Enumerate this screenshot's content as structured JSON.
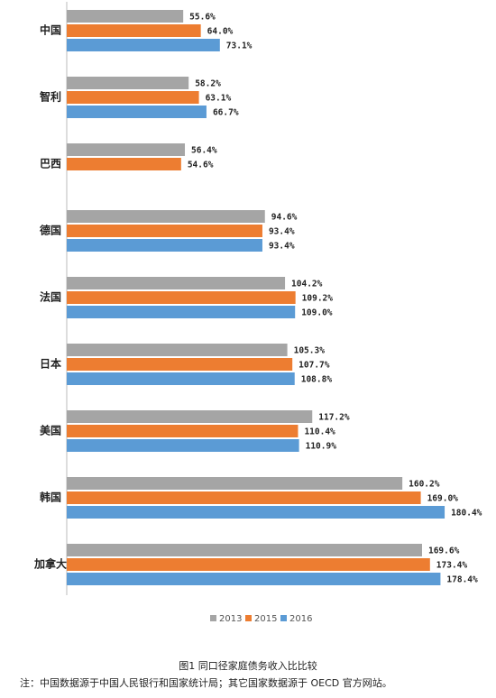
{
  "chart_data": {
    "type": "bar",
    "orientation": "horizontal",
    "categories": [
      "中国",
      "智利",
      "巴西",
      "德国",
      "法国",
      "日本",
      "美国",
      "韩国",
      "加拿大"
    ],
    "series": [
      {
        "name": "2013",
        "color": "#a5a5a5",
        "values": [
          55.6,
          58.2,
          56.4,
          94.6,
          104.2,
          105.3,
          117.2,
          160.2,
          169.6
        ],
        "value_labels": [
          "55.6%",
          "58.2%",
          "56.4%",
          "94.6%",
          "104.2%",
          "105.3%",
          "117.2%",
          "160.2%",
          "169.6%"
        ]
      },
      {
        "name": "2015",
        "color": "#ed7d31",
        "values": [
          64.0,
          63.1,
          54.6,
          93.4,
          109.2,
          107.7,
          110.4,
          169.0,
          173.4
        ],
        "value_labels": [
          "64.0%",
          "63.1%",
          "54.6%",
          "93.4%",
          "109.2%",
          "107.7%",
          "110.4%",
          "169.0%",
          "173.4%"
        ]
      },
      {
        "name": "2016",
        "color": "#5b9bd5",
        "values": [
          73.1,
          66.7,
          null,
          93.4,
          109.0,
          108.8,
          110.9,
          180.4,
          178.4
        ],
        "value_labels": [
          "73.1%",
          "66.7%",
          null,
          "93.4%",
          "109.0%",
          "108.8%",
          "110.9%",
          "180.4%",
          "178.4%"
        ]
      }
    ],
    "legend": "bottom",
    "caption": "图1 同口径家庭债务收入比比较",
    "note": "注：中国数据源于中国人民银行和国家统计局；其它国家数据源于 OECD 官方网站。"
  }
}
